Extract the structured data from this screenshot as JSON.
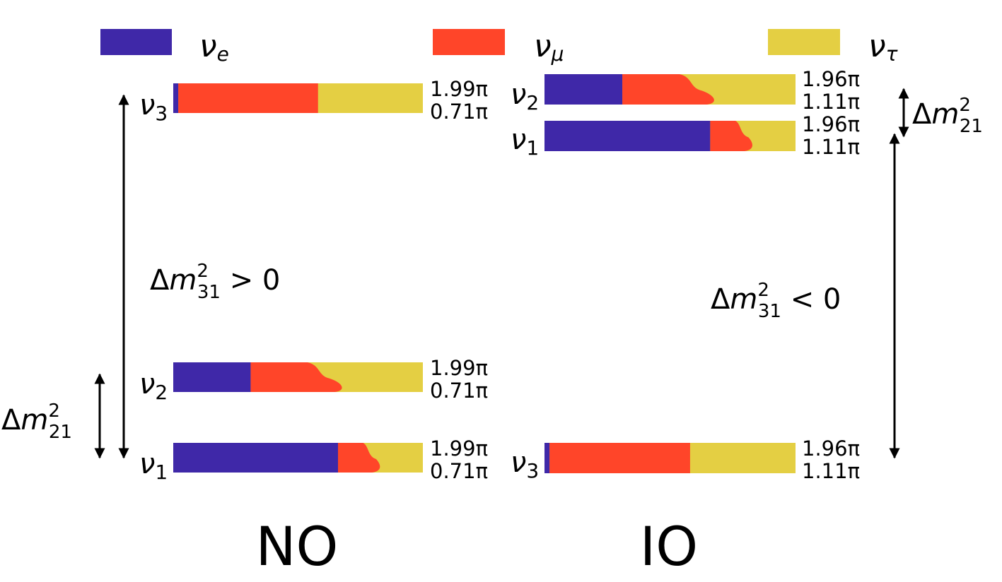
{
  "colors": {
    "nu_e": "#3f28a8",
    "nu_mu": "#ff4529",
    "nu_tau": "#e4cf43",
    "arrow": "#000000"
  },
  "legend": [
    {
      "symbol": "ν",
      "sub": "e",
      "color_key": "nu_e"
    },
    {
      "symbol": "ν",
      "sub": "μ",
      "color_key": "nu_mu"
    },
    {
      "symbol": "ν",
      "sub": "τ",
      "color_key": "nu_tau"
    }
  ],
  "panels": {
    "NO": {
      "title": "NO",
      "big_splitting": {
        "prefix": "Δ",
        "m": "m",
        "sup": "2",
        "sub": "31",
        "relation": " > 0"
      },
      "small_splitting": {
        "prefix": "Δ",
        "m": "m",
        "sup": "2",
        "sub": "21"
      },
      "states": [
        {
          "symbol": "ν",
          "sub": "3",
          "fractions": {
            "e": 0.02,
            "mu": 0.56,
            "tau": 0.42
          },
          "phase1": "1.99π",
          "phase2": "0.71π"
        },
        {
          "symbol": "ν",
          "sub": "2",
          "fractions": {
            "e": 0.31,
            "mu": 0.34,
            "tau": 0.35
          },
          "phase1": "1.99π",
          "phase2": "0.71π"
        },
        {
          "symbol": "ν",
          "sub": "1",
          "fractions": {
            "e": 0.66,
            "mu": 0.15,
            "tau": 0.19
          },
          "phase1": "1.99π",
          "phase2": "0.71π"
        }
      ]
    },
    "IO": {
      "title": "IO",
      "big_splitting": {
        "prefix": "Δ",
        "m": "m",
        "sup": "2",
        "sub": "31",
        "relation": " < 0"
      },
      "small_splitting": {
        "prefix": "Δ",
        "m": "m",
        "sup": "2",
        "sub": "21"
      },
      "states": [
        {
          "symbol": "ν",
          "sub": "2",
          "fractions": {
            "e": 0.31,
            "mu": 0.34,
            "tau": 0.35
          },
          "phase1": "1.96π",
          "phase2": "1.11π"
        },
        {
          "symbol": "ν",
          "sub": "1",
          "fractions": {
            "e": 0.66,
            "mu": 0.15,
            "tau": 0.19
          },
          "phase1": "1.96π",
          "phase2": "1.11π"
        },
        {
          "symbol": "ν",
          "sub": "3",
          "fractions": {
            "e": 0.02,
            "mu": 0.56,
            "tau": 0.42
          },
          "phase1": "1.96π",
          "phase2": "1.11π"
        }
      ]
    }
  }
}
